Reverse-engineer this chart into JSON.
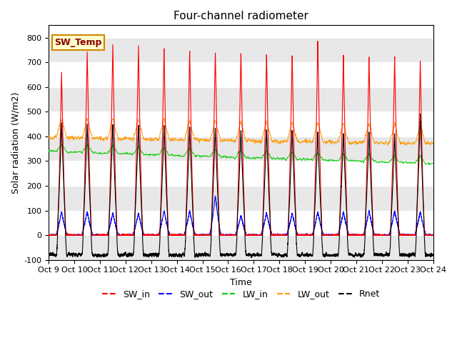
{
  "title": "Four-channel radiometer",
  "ylabel": "Solar radiation (W/m2)",
  "xlabel": "Time",
  "ylim": [
    -100,
    850
  ],
  "yticks": [
    -100,
    0,
    100,
    200,
    300,
    400,
    500,
    600,
    700,
    800
  ],
  "annotation_text": "SW_Temp",
  "colors": {
    "SW_in": "#ff0000",
    "SW_out": "#0000ff",
    "LW_in": "#00cc00",
    "LW_out": "#ff9900",
    "Rnet": "#000000"
  },
  "legend_labels": [
    "SW_in",
    "SW_out",
    "LW_in",
    "LW_out",
    "Rnet"
  ],
  "x_tick_labels": [
    "Oct 9",
    "Oct 10",
    "Oct 11",
    "Oct 12",
    "Oct 13",
    "Oct 14",
    "Oct 15",
    "Oct 16",
    "Oct 17",
    "Oct 18",
    "Oct 19",
    "Oct 20",
    "Oct 21",
    "Oct 22",
    "Oct 23",
    "Oct 24"
  ],
  "n_days": 15,
  "pts_per_day": 288,
  "sw_in_amplitudes": [
    660,
    745,
    775,
    770,
    760,
    752,
    748,
    745,
    740,
    735,
    790,
    733,
    725,
    725,
    705
  ],
  "sw_out_amplitudes": [
    95,
    95,
    90,
    90,
    100,
    100,
    160,
    80,
    90,
    90,
    95,
    95,
    100,
    100,
    95
  ],
  "rnet_amplitudes": [
    460,
    450,
    455,
    450,
    445,
    440,
    435,
    430,
    430,
    425,
    420,
    415,
    420,
    405,
    490
  ],
  "lw_in_base": 340,
  "lw_out_base": 390,
  "background_color": "#ffffff",
  "hband_color": "#e8e8e8"
}
